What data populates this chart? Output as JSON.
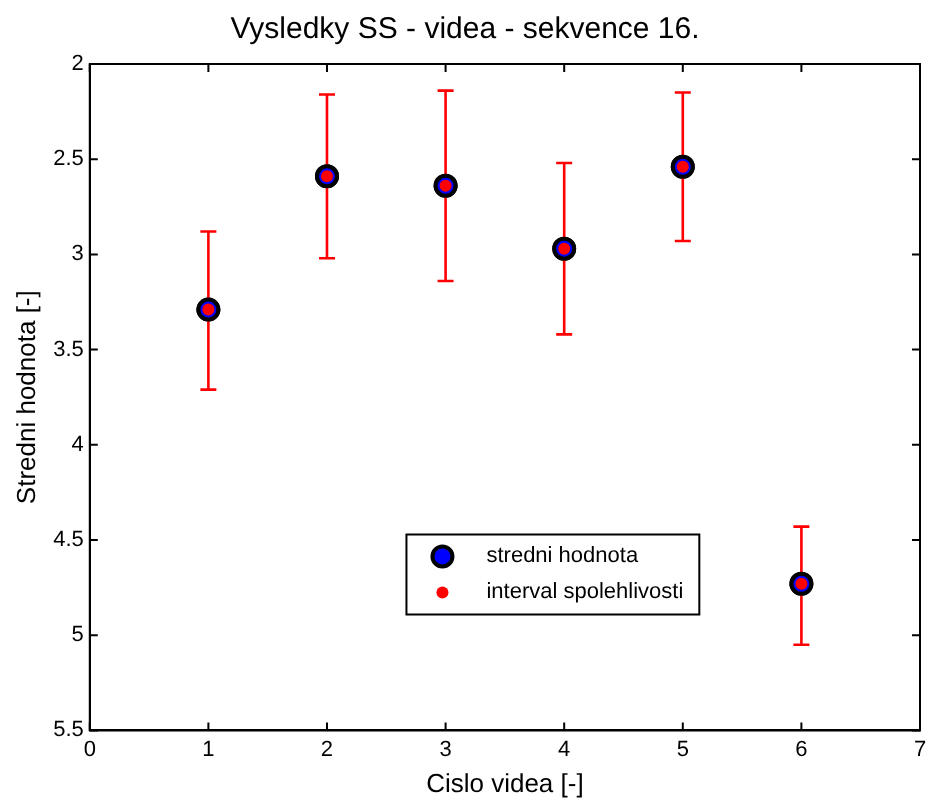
{
  "chart_data": {
    "type": "scatter",
    "title": "Vysledky SS - videa - sekvence 16.",
    "xlabel": "Cislo videa [-]",
    "ylabel": "Stredni hodnota [-]",
    "x": [
      1,
      2,
      3,
      4,
      5,
      6
    ],
    "series": [
      {
        "name": "stredni hodnota",
        "color": "#0000ff",
        "values": [
          3.29,
          2.59,
          2.64,
          2.97,
          2.54,
          4.73
        ]
      },
      {
        "name": "interval spolehlivosti",
        "color": "#ff0000",
        "values": [
          3.29,
          2.59,
          2.64,
          2.97,
          2.54,
          4.73
        ],
        "errors": [
          [
            2.88,
            3.71
          ],
          [
            2.16,
            3.02
          ],
          [
            2.14,
            3.14
          ],
          [
            2.52,
            3.42
          ],
          [
            2.15,
            2.93
          ],
          [
            4.43,
            5.05
          ]
        ]
      }
    ],
    "xlim": [
      0,
      7
    ],
    "xticks": [
      0,
      1,
      2,
      3,
      4,
      5,
      6,
      7
    ],
    "ylim": [
      5.5,
      2
    ],
    "yticks": [
      2,
      2.5,
      3,
      3.5,
      4,
      4.5,
      5,
      5.5
    ],
    "marker": "circle",
    "grid": false,
    "legend": "bottom"
  }
}
